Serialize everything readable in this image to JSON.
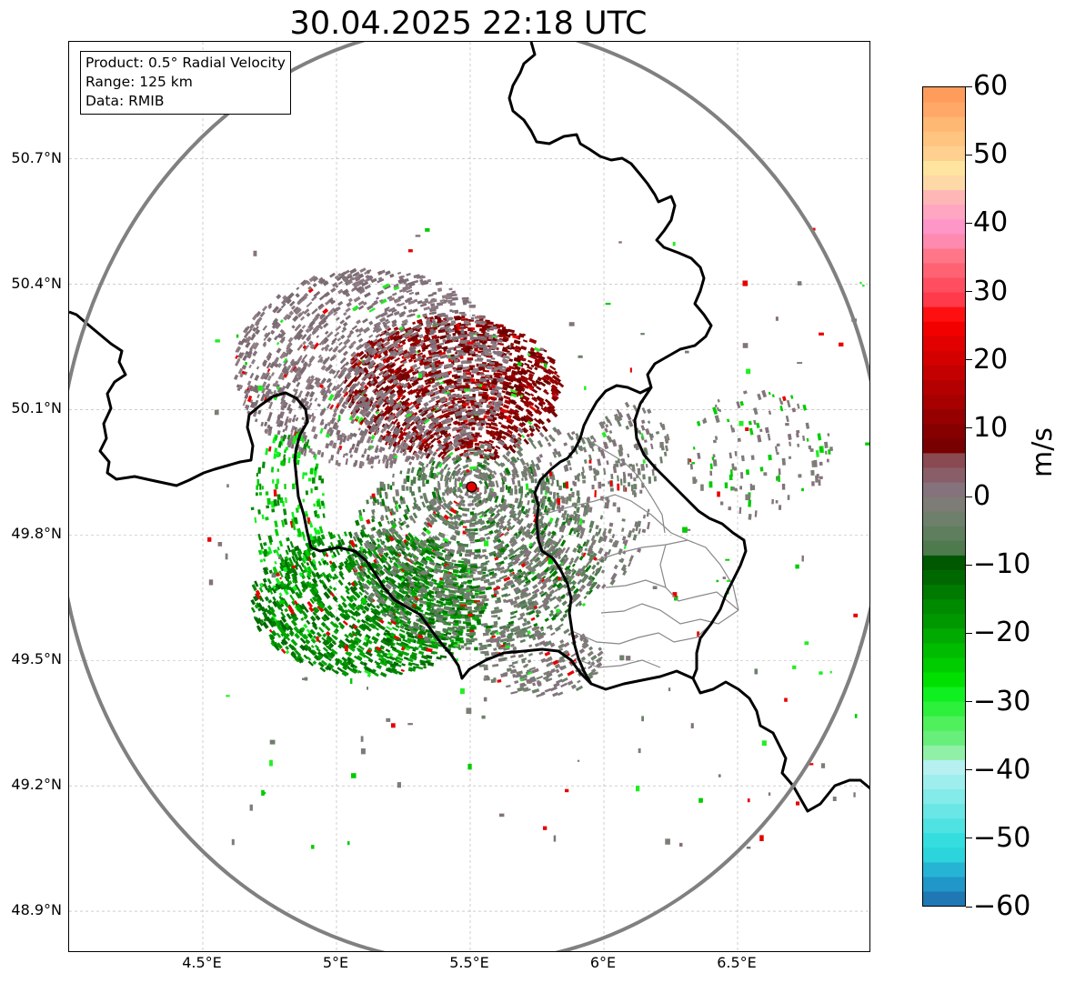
{
  "title": "30.04.2025 22:18 UTC",
  "info_box": {
    "product": "Product: 0.5° Radial Velocity",
    "range": "Range: 125 km",
    "data": "Data: RMIB"
  },
  "map": {
    "lon_range": [
      4.0,
      7.0
    ],
    "lat_range": [
      48.8,
      50.98
    ],
    "lat_ticks": [
      {
        "value": 50.7,
        "label": "50.7°N"
      },
      {
        "value": 50.4,
        "label": "50.4°N"
      },
      {
        "value": 50.1,
        "label": "50.1°N"
      },
      {
        "value": 49.8,
        "label": "49.8°N"
      },
      {
        "value": 49.5,
        "label": "49.5°N"
      },
      {
        "value": 49.2,
        "label": "49.2°N"
      },
      {
        "value": 48.9,
        "label": "48.9°N"
      }
    ],
    "lon_ticks": [
      {
        "value": 4.5,
        "label": "4.5°E"
      },
      {
        "value": 5.0,
        "label": "5°E"
      },
      {
        "value": 5.5,
        "label": "5.5°E"
      },
      {
        "value": 6.0,
        "label": "6°E"
      },
      {
        "value": 6.5,
        "label": "6.5°E"
      }
    ],
    "radar_site": {
      "lon": 5.505,
      "lat": 49.915,
      "color": "#e60000"
    },
    "range_ring_color": "#808080",
    "border_color": "#000000",
    "district_color": "#888888"
  },
  "colorbar": {
    "label": "m/s",
    "min": -60,
    "max": 60,
    "ticks": [
      {
        "value": 60,
        "label": "60"
      },
      {
        "value": 50,
        "label": "50"
      },
      {
        "value": 40,
        "label": "40"
      },
      {
        "value": 30,
        "label": "30"
      },
      {
        "value": 20,
        "label": "20"
      },
      {
        "value": 10,
        "label": "10"
      },
      {
        "value": 0,
        "label": "0"
      },
      {
        "value": -10,
        "label": "−10"
      },
      {
        "value": -20,
        "label": "−20"
      },
      {
        "value": -30,
        "label": "−30"
      },
      {
        "value": -40,
        "label": "−40"
      },
      {
        "value": -50,
        "label": "−50"
      },
      {
        "value": -60,
        "label": "−60"
      }
    ],
    "colors_bottom_to_top": [
      "#1f77b4",
      "#2196c8",
      "#26b4d4",
      "#2cd4dc",
      "#34dede",
      "#4fe2e2",
      "#6ae6e6",
      "#84eaea",
      "#9eeeee",
      "#b6f0f0",
      "#90f0a8",
      "#68ee7a",
      "#4ff05c",
      "#2cf03c",
      "#10f020",
      "#00e000",
      "#00cc00",
      "#00bc00",
      "#00aa00",
      "#009800",
      "#008a00",
      "#007a00",
      "#006800",
      "#005800",
      "#4e7a4e",
      "#5e7e5e",
      "#6e806c",
      "#7e7c76",
      "#84727c",
      "#8a5e68",
      "#8a4a52",
      "#780000",
      "#860000",
      "#960000",
      "#a60000",
      "#b40000",
      "#c40000",
      "#d40000",
      "#e20000",
      "#f20000",
      "#ff1010",
      "#ff3a4a",
      "#ff4e60",
      "#ff6272",
      "#ff7688",
      "#ff8ab0",
      "#ff96c8",
      "#ffa6c2",
      "#ffb6b6",
      "#ffd8a8",
      "#ffe4a0",
      "#ffd090",
      "#ffc480",
      "#ffb874",
      "#ffa868",
      "#ff9c5c"
    ]
  }
}
